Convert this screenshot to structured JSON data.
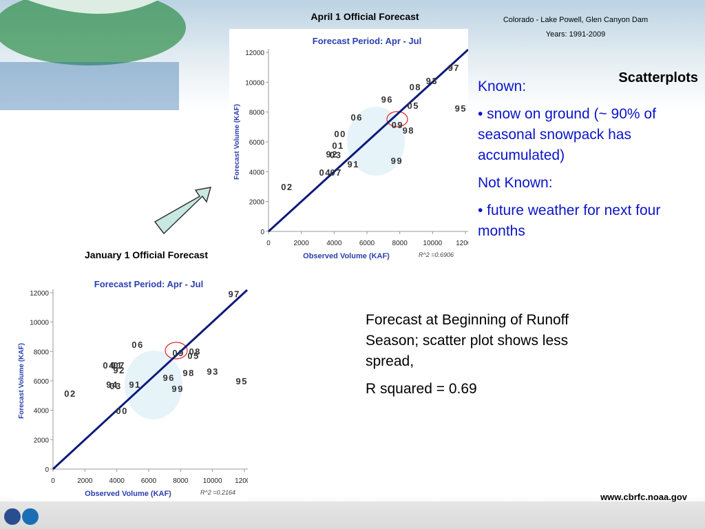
{
  "slide": {
    "top_title": "April 1 Official Forecast",
    "location": "Colorado - Lake Powell, Glen Canyon Dam",
    "years": "Years: 1991-2009",
    "heading": "Scatterplots",
    "known_label": "Known:",
    "known_item": "• snow on ground (~ 90% of seasonal snowpack has accumulated)",
    "not_known_label": "Not Known:",
    "not_known_item": "• future weather for next four months",
    "jan_title": "January 1 Official Forecast",
    "note": "Forecast at Beginning of Runoff Season; scatter plot shows less spread,",
    "r_squared": "R squared = 0.69",
    "url": "www.cbrfc.noaa.gov"
  },
  "chart_data": [
    {
      "type": "scatter",
      "title": "Forecast Period: Apr - Jul",
      "x_label": "Observed Volume (KAF)",
      "y_label": "Forecast Volume (KAF)",
      "annotation": "R^2 =0.6906",
      "labels": [
        "97",
        "93",
        "08",
        "96",
        "05",
        "95",
        "06",
        "09",
        "98",
        "00",
        "01",
        "92",
        "03",
        "91",
        "99",
        "04",
        "07",
        "02"
      ],
      "x": [
        11300,
        9960,
        8950,
        7230,
        8820,
        11720,
        5380,
        7860,
        8530,
        4370,
        4240,
        3870,
        4100,
        5170,
        7820,
        3450,
        4120,
        1130
      ],
      "values": [
        10980,
        10100,
        9690,
        8860,
        8450,
        8260,
        7660,
        7150,
        6780,
        6550,
        5770,
        5200,
        5150,
        4520,
        4750,
        3970,
        3970,
        3000
      ],
      "color": "#333333",
      "line_color": "#0b1a7a",
      "xlim": [
        0,
        12000
      ],
      "ylim": [
        0,
        12000
      ],
      "xticks": [
        0,
        2000,
        4000,
        6000,
        8000,
        10000,
        12000
      ],
      "yticks": [
        0,
        2000,
        4000,
        6000,
        8000,
        10000,
        12000
      ]
    },
    {
      "type": "scatter",
      "title": "Forecast Period: Apr - Jul",
      "x_label": "Observed Volume (KAF)",
      "y_label": "Forecast Volume (KAF)",
      "annotation": "R^2 =0.2164",
      "labels": [
        "97",
        "06",
        "09",
        "08",
        "05",
        "04",
        "07",
        "01",
        "92",
        "96",
        "98",
        "93",
        "95",
        "94",
        "03",
        "91",
        "99",
        "02",
        "00"
      ],
      "x": [
        11360,
        5310,
        7860,
        8900,
        8810,
        3500,
        4150,
        4000,
        4150,
        7260,
        8510,
        10020,
        11840,
        3710,
        3930,
        5140,
        7820,
        1080,
        4320
      ],
      "values": [
        11940,
        8480,
        7920,
        8010,
        7730,
        7070,
        7070,
        7070,
        6740,
        6230,
        6560,
        6650,
        6000,
        5760,
        5670,
        5760,
        5480,
        5150,
        3980
      ],
      "color": "#333333",
      "line_color": "#0b1a7a",
      "xlim": [
        0,
        12000
      ],
      "ylim": [
        0,
        12000
      ],
      "xticks": [
        0,
        2000,
        4000,
        6000,
        8000,
        10000,
        12000
      ],
      "yticks": [
        0,
        2000,
        4000,
        6000,
        8000,
        10000,
        12000
      ]
    }
  ]
}
